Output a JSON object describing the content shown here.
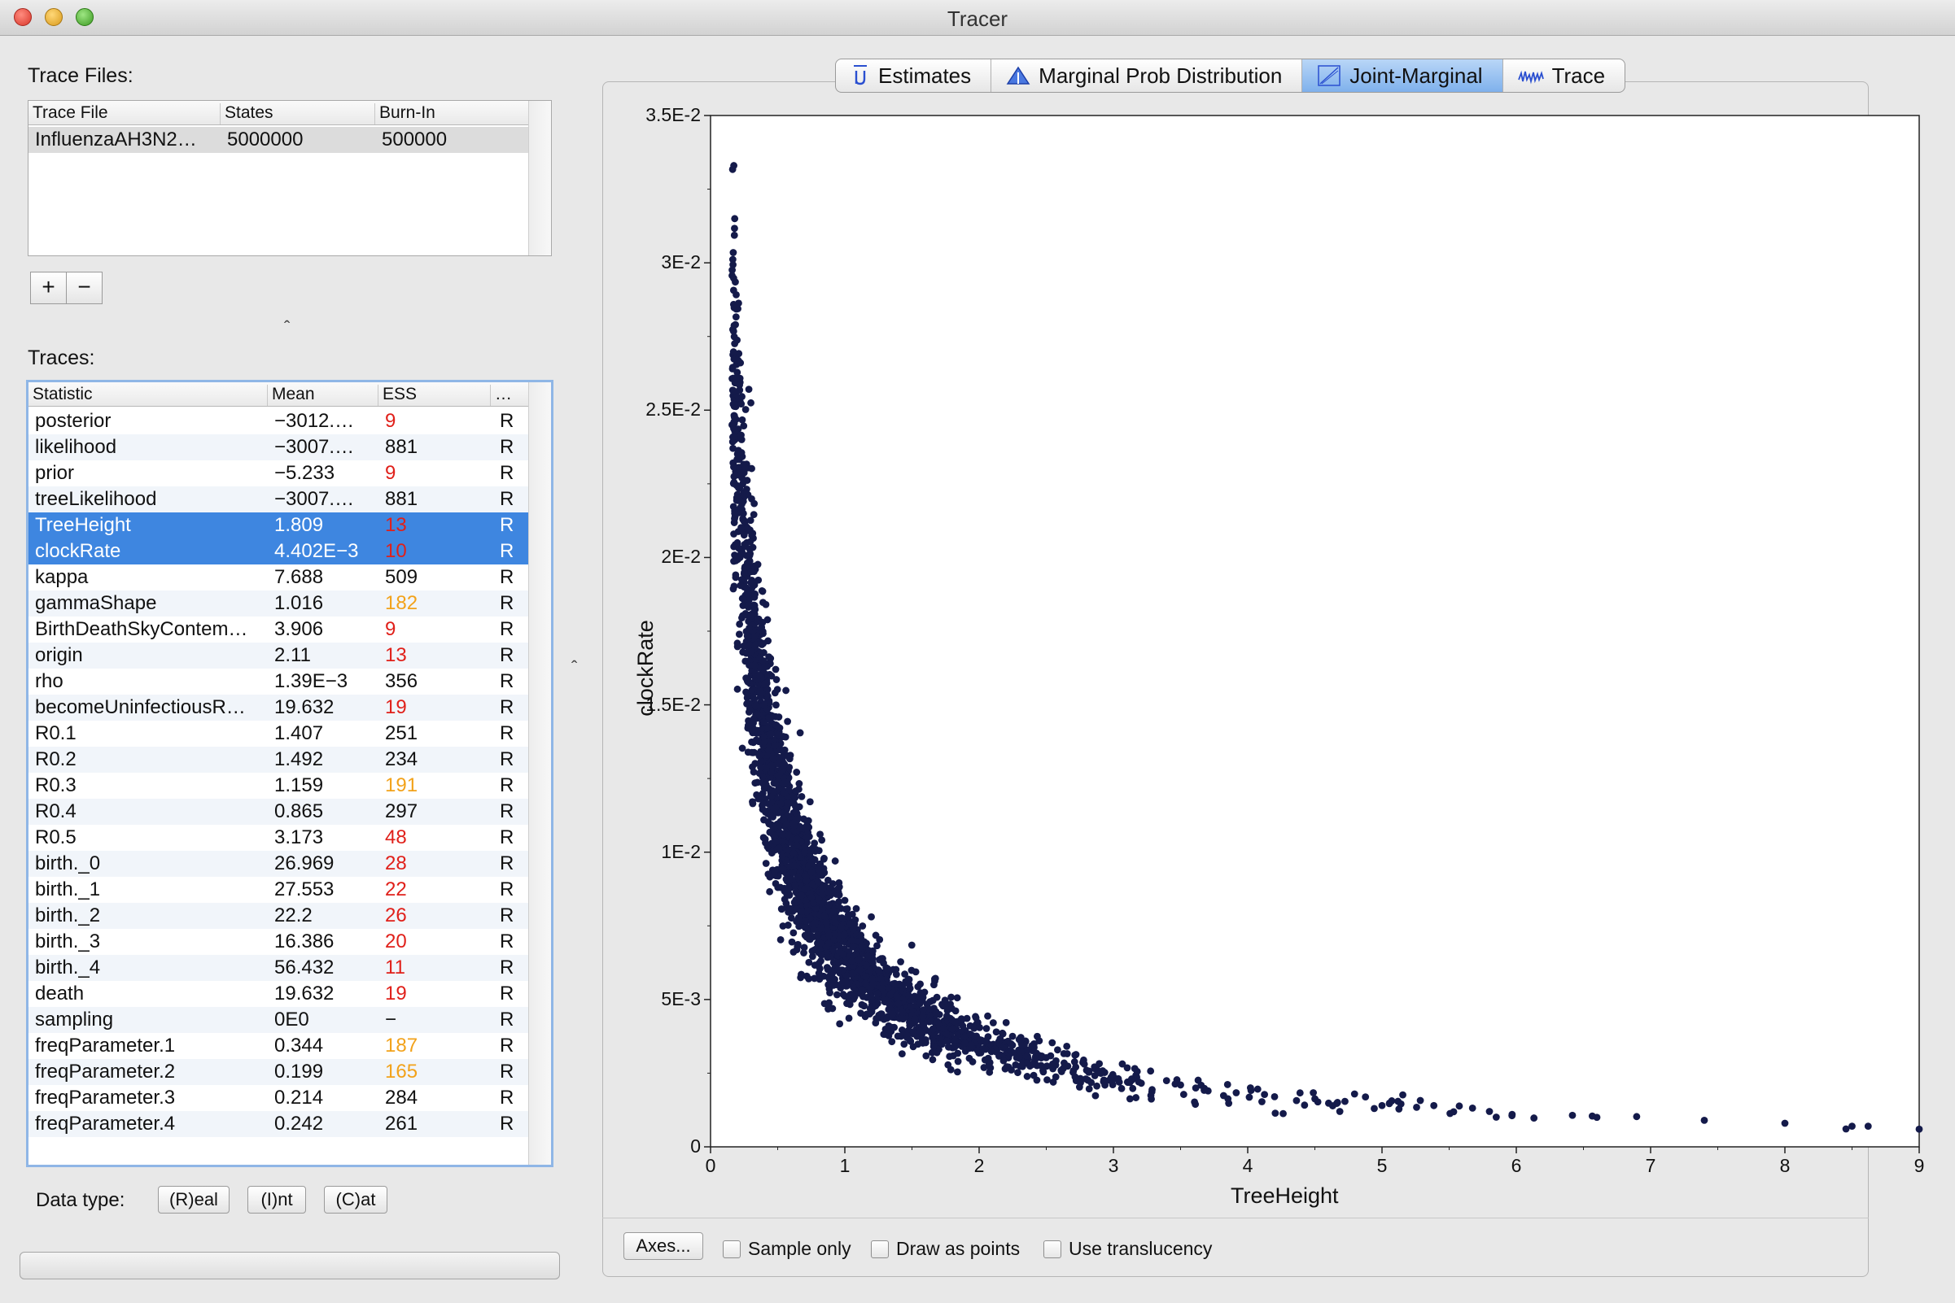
{
  "window": {
    "title": "Tracer"
  },
  "trace_files": {
    "label": "Trace Files:",
    "columns": [
      "Trace File",
      "States",
      "Burn-In"
    ],
    "rows": [
      {
        "file": "InfluenzaAH3N2…",
        "states": "5000000",
        "burnin": "500000"
      }
    ],
    "add_label": "+",
    "remove_label": "−"
  },
  "traces": {
    "label": "Traces:",
    "columns": [
      "Statistic",
      "Mean",
      "ESS",
      "…"
    ],
    "rows": [
      {
        "statistic": "posterior",
        "mean": "−3012.…",
        "ess": "9",
        "ess_level": "red",
        "type": "R"
      },
      {
        "statistic": "likelihood",
        "mean": "−3007.…",
        "ess": "881",
        "ess_level": "ok",
        "type": "R"
      },
      {
        "statistic": "prior",
        "mean": "−5.233",
        "ess": "9",
        "ess_level": "red",
        "type": "R"
      },
      {
        "statistic": "treeLikelihood",
        "mean": "−3007.…",
        "ess": "881",
        "ess_level": "ok",
        "type": "R"
      },
      {
        "statistic": "TreeHeight",
        "mean": "1.809",
        "ess": "13",
        "ess_level": "red",
        "type": "R",
        "selected": true
      },
      {
        "statistic": "clockRate",
        "mean": "4.402E−3",
        "ess": "10",
        "ess_level": "red",
        "type": "R",
        "selected": true
      },
      {
        "statistic": "kappa",
        "mean": "7.688",
        "ess": "509",
        "ess_level": "ok",
        "type": "R"
      },
      {
        "statistic": "gammaShape",
        "mean": "1.016",
        "ess": "182",
        "ess_level": "orange",
        "type": "R"
      },
      {
        "statistic": "BirthDeathSkyContem…",
        "mean": "3.906",
        "ess": "9",
        "ess_level": "red",
        "type": "R"
      },
      {
        "statistic": "origin",
        "mean": "2.11",
        "ess": "13",
        "ess_level": "red",
        "type": "R"
      },
      {
        "statistic": "rho",
        "mean": "1.39E−3",
        "ess": "356",
        "ess_level": "ok",
        "type": "R"
      },
      {
        "statistic": "becomeUninfectiousR…",
        "mean": "19.632",
        "ess": "19",
        "ess_level": "red",
        "type": "R"
      },
      {
        "statistic": "R0.1",
        "mean": "1.407",
        "ess": "251",
        "ess_level": "ok",
        "type": "R"
      },
      {
        "statistic": "R0.2",
        "mean": "1.492",
        "ess": "234",
        "ess_level": "ok",
        "type": "R"
      },
      {
        "statistic": "R0.3",
        "mean": "1.159",
        "ess": "191",
        "ess_level": "orange",
        "type": "R"
      },
      {
        "statistic": "R0.4",
        "mean": "0.865",
        "ess": "297",
        "ess_level": "ok",
        "type": "R"
      },
      {
        "statistic": "R0.5",
        "mean": "3.173",
        "ess": "48",
        "ess_level": "red",
        "type": "R"
      },
      {
        "statistic": "birth._0",
        "mean": "26.969",
        "ess": "28",
        "ess_level": "red",
        "type": "R"
      },
      {
        "statistic": "birth._1",
        "mean": "27.553",
        "ess": "22",
        "ess_level": "red",
        "type": "R"
      },
      {
        "statistic": "birth._2",
        "mean": "22.2",
        "ess": "26",
        "ess_level": "red",
        "type": "R"
      },
      {
        "statistic": "birth._3",
        "mean": "16.386",
        "ess": "20",
        "ess_level": "red",
        "type": "R"
      },
      {
        "statistic": "birth._4",
        "mean": "56.432",
        "ess": "11",
        "ess_level": "red",
        "type": "R"
      },
      {
        "statistic": "death",
        "mean": "19.632",
        "ess": "19",
        "ess_level": "red",
        "type": "R"
      },
      {
        "statistic": "sampling",
        "mean": "0E0",
        "ess": "−",
        "ess_level": "ok",
        "type": "R"
      },
      {
        "statistic": "freqParameter.1",
        "mean": "0.344",
        "ess": "187",
        "ess_level": "orange",
        "type": "R"
      },
      {
        "statistic": "freqParameter.2",
        "mean": "0.199",
        "ess": "165",
        "ess_level": "orange",
        "type": "R"
      },
      {
        "statistic": "freqParameter.3",
        "mean": "0.214",
        "ess": "284",
        "ess_level": "ok",
        "type": "R"
      },
      {
        "statistic": "freqParameter.4",
        "mean": "0.242",
        "ess": "261",
        "ess_level": "ok",
        "type": "R"
      }
    ]
  },
  "data_type": {
    "label": "Data type:",
    "buttons": [
      "(R)eal",
      "(I)nt",
      "(C)at"
    ]
  },
  "tabs": [
    {
      "label": "Estimates",
      "icon": "mu-icon"
    },
    {
      "label": "Marginal Prob Distribution",
      "icon": "density-icon"
    },
    {
      "label": "Joint-Marginal",
      "icon": "scatter-icon",
      "active": true
    },
    {
      "label": "Trace",
      "icon": "trace-icon"
    }
  ],
  "colors": {
    "points": "#141a4a",
    "selection": "#3e86e0",
    "ess_low": "#e0201a",
    "ess_mid": "#f2a21a"
  },
  "chart_data": {
    "type": "scatter",
    "xlabel": "TreeHeight",
    "ylabel": "clockRate",
    "xlim": [
      0,
      9
    ],
    "ylim": [
      0,
      0.035
    ],
    "x_ticks": [
      "0",
      "1",
      "2",
      "3",
      "4",
      "5",
      "6",
      "7",
      "8",
      "9"
    ],
    "y_ticks": [
      "0",
      "5E-3",
      "1E-2",
      "1.5E-2",
      "2E-2",
      "2.5E-2",
      "3E-2",
      "3.5E-2"
    ],
    "relationship": "clockRate ≈ 0.0074 / TreeHeight (inverse curve, dense cloud of ~5000 samples)",
    "points": [
      [
        0.18,
        0.0315
      ],
      [
        0.19,
        0.0261
      ],
      [
        0.16,
        0.0245
      ],
      [
        0.17,
        0.0241
      ],
      [
        0.19,
        0.0228
      ],
      [
        0.24,
        0.0225
      ],
      [
        0.21,
        0.022
      ],
      [
        0.18,
        0.0215
      ],
      [
        0.2,
        0.0205
      ],
      [
        0.22,
        0.02
      ],
      [
        0.25,
        0.019
      ],
      [
        0.3,
        0.018
      ],
      [
        0.33,
        0.017
      ],
      [
        0.36,
        0.016
      ],
      [
        0.4,
        0.015
      ],
      [
        0.45,
        0.014
      ],
      [
        0.5,
        0.013
      ],
      [
        0.55,
        0.012
      ],
      [
        0.62,
        0.011
      ],
      [
        0.7,
        0.01
      ],
      [
        0.8,
        0.009
      ],
      [
        0.92,
        0.008
      ],
      [
        1.05,
        0.007
      ],
      [
        1.25,
        0.006
      ],
      [
        1.5,
        0.005
      ],
      [
        1.8,
        0.004
      ],
      [
        2.25,
        0.0032
      ],
      [
        2.8,
        0.0026
      ],
      [
        3.5,
        0.0021
      ],
      [
        4.2,
        0.0017
      ],
      [
        5.0,
        0.0014
      ],
      [
        5.8,
        0.0012
      ],
      [
        6.6,
        0.001
      ],
      [
        7.4,
        0.0009
      ],
      [
        8.0,
        0.0008
      ],
      [
        8.5,
        0.0007
      ],
      [
        8.62,
        0.0007
      ],
      [
        9.0,
        0.0006
      ]
    ]
  },
  "plot_controls": {
    "axes_button": "Axes...",
    "checkboxes": [
      "Sample only",
      "Draw as points",
      "Use translucency"
    ]
  }
}
